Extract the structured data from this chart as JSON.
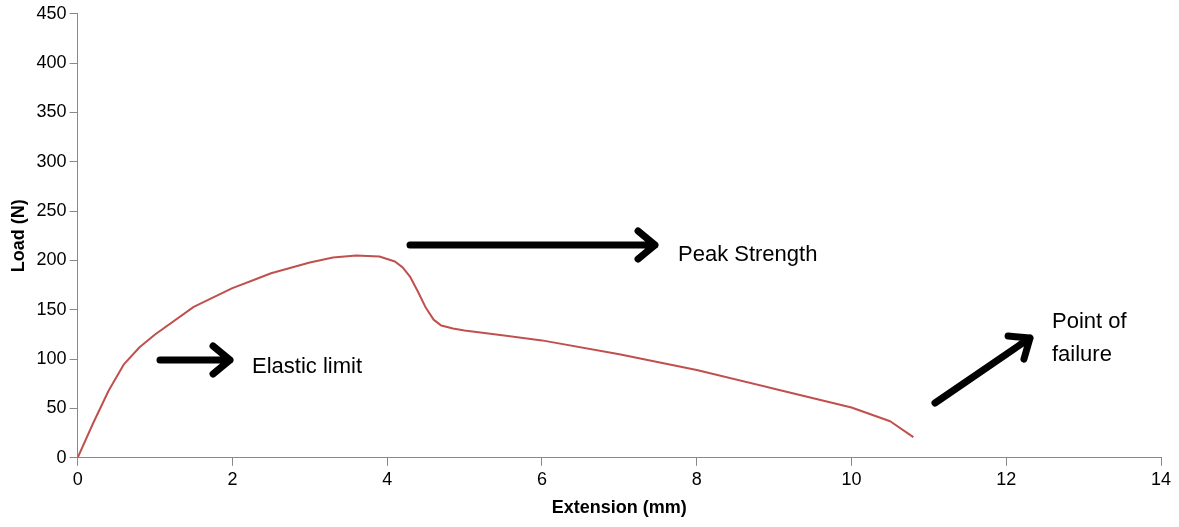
{
  "chart_data": {
    "type": "line",
    "xlabel": "Extension (mm)",
    "ylabel": "Load (N)",
    "xlim": [
      0,
      14
    ],
    "xticks": [
      0,
      2,
      4,
      6,
      8,
      10,
      12,
      14
    ],
    "ylim": [
      0,
      450
    ],
    "yticks": [
      0,
      50,
      100,
      150,
      200,
      250,
      300,
      350,
      400,
      450
    ],
    "grid": false,
    "legend": false,
    "marker": "none",
    "line_style": "solid",
    "series": [
      {
        "color": "#c0504d",
        "x": [
          0,
          0.2,
          0.4,
          0.6,
          0.8,
          1,
          1.5,
          2,
          2.5,
          3,
          3.3,
          3.6,
          3.9,
          4.1,
          4.2,
          4.3,
          4.4,
          4.5,
          4.6,
          4.7,
          4.85,
          5,
          6,
          7,
          8,
          9,
          10,
          10.5,
          10.8
        ],
        "values": [
          0,
          35,
          68,
          95,
          112,
          125,
          153,
          172,
          187,
          198,
          203,
          205,
          204,
          199,
          193,
          183,
          168,
          152,
          140,
          134,
          131,
          129,
          119,
          105,
          89,
          70,
          51,
          37,
          21
        ]
      }
    ],
    "annotations": [
      "Elastic limit",
      "Peak Strength",
      "Point of failure"
    ]
  }
}
